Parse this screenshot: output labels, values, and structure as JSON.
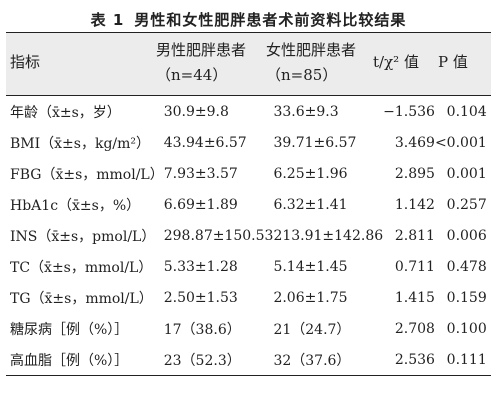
{
  "title": {
    "number": "表 1",
    "text": "男性和女性肥胖患者术前资料比较结果"
  },
  "header": {
    "indicator": "指标",
    "male": "男性肥胖患者",
    "male_n": "（n=44）",
    "female": "女性肥胖患者",
    "female_n": "（n=85）",
    "stat": "t/χ² 值",
    "p": "P 值"
  },
  "rows": [
    {
      "indicator": "年龄（x̄±s，岁）",
      "male": "30.9±9.8",
      "female": "33.6±9.3",
      "stat": "−1.536",
      "p": "0.104"
    },
    {
      "indicator": "BMI（x̄±s，kg/m²）",
      "male": "43.94±6.57",
      "female": "39.71±6.57",
      "stat": "3.469",
      "p": "<0.001"
    },
    {
      "indicator": "FBG（x̄±s，mmol/L）",
      "male": "7.93±3.57",
      "female": "6.25±1.96",
      "stat": "2.895",
      "p": "0.001"
    },
    {
      "indicator": "HbA1c（x̄±s，%）",
      "male": "6.69±1.89",
      "female": "6.32±1.41",
      "stat": "1.142",
      "p": "0.257"
    },
    {
      "indicator": "INS（x̄±s，pmol/L）",
      "male": "298.87±150.53",
      "female": "213.91±142.86",
      "stat": "2.811",
      "p": "0.006"
    },
    {
      "indicator": "TC（x̄±s，mmol/L）",
      "male": "5.33±1.28",
      "female": "5.14±1.45",
      "stat": "0.711",
      "p": "0.478"
    },
    {
      "indicator": "TG（x̄±s，mmol/L）",
      "male": "2.50±1.53",
      "female": "2.06±1.75",
      "stat": "1.415",
      "p": "0.159"
    },
    {
      "indicator": "糖尿病［例（%）］",
      "male": "17（38.6）",
      "female": "21（24.7）",
      "stat": "2.708",
      "p": "0.100"
    },
    {
      "indicator": "高血脂［例（%）］",
      "male": "23（52.3）",
      "female": "32（37.6）",
      "stat": "2.536",
      "p": "0.111"
    }
  ]
}
